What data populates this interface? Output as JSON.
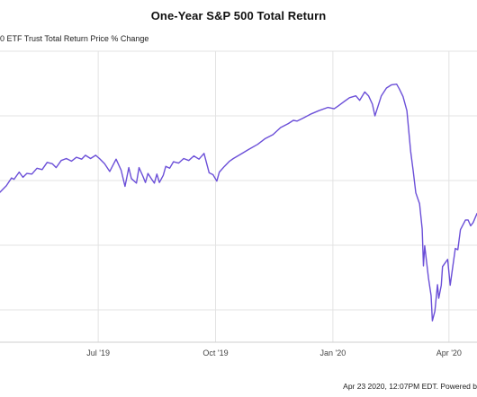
{
  "chart_data": {
    "type": "line",
    "title": "One-Year S&P 500 Total Return",
    "series_label_visible": "0 ETF Trust Total Return Price % Change",
    "footer": "Apr 23 2020, 12:07PM EDT.  Powered b",
    "x_tick_labels": [
      "Jul '19",
      "Oct '19",
      "Jan '20",
      "Apr '20"
    ],
    "x_ticks": [
      "2019-07-01",
      "2019-10-01",
      "2020-01-01",
      "2020-04-01"
    ],
    "xlim": [
      "2019-04-15",
      "2020-04-23"
    ],
    "ylim": [
      -25,
      20
    ],
    "ytick_values": [
      -20,
      -10,
      0,
      10,
      20
    ],
    "grid": true,
    "line_color": "#6b4fd8",
    "series": [
      {
        "x": [
          "2019-04-15",
          "2019-04-20",
          "2019-04-24",
          "2019-04-26",
          "2019-04-30",
          "2019-05-03",
          "2019-05-06",
          "2019-05-10",
          "2019-05-14",
          "2019-05-18",
          "2019-05-22",
          "2019-05-26",
          "2019-05-29",
          "2019-06-02",
          "2019-06-06",
          "2019-06-10",
          "2019-06-14",
          "2019-06-18",
          "2019-06-21",
          "2019-06-25",
          "2019-06-29",
          "2019-07-02",
          "2019-07-06",
          "2019-07-10",
          "2019-07-15",
          "2019-07-19",
          "2019-07-22",
          "2019-07-25",
          "2019-07-27",
          "2019-07-31",
          "2019-08-02",
          "2019-08-05",
          "2019-08-07",
          "2019-08-09",
          "2019-08-12",
          "2019-08-14",
          "2019-08-16",
          "2019-08-18",
          "2019-08-21",
          "2019-08-23",
          "2019-08-26",
          "2019-08-29",
          "2019-09-02",
          "2019-09-06",
          "2019-09-10",
          "2019-09-14",
          "2019-09-18",
          "2019-09-22",
          "2019-09-26",
          "2019-09-29",
          "2019-10-02",
          "2019-10-04",
          "2019-10-08",
          "2019-10-12",
          "2019-10-15",
          "2019-10-21",
          "2019-10-27",
          "2019-11-03",
          "2019-11-09",
          "2019-11-15",
          "2019-11-21",
          "2019-11-27",
          "2019-12-01",
          "2019-12-04",
          "2019-12-09",
          "2019-12-15",
          "2019-12-21",
          "2019-12-28",
          "2020-01-02",
          "2020-01-05",
          "2020-01-09",
          "2020-01-14",
          "2020-01-19",
          "2020-01-22",
          "2020-01-26",
          "2020-01-29",
          "2020-02-01",
          "2020-02-03",
          "2020-02-08",
          "2020-02-12",
          "2020-02-16",
          "2020-02-20",
          "2020-02-22",
          "2020-02-25",
          "2020-02-28",
          "2020-03-02",
          "2020-03-04",
          "2020-03-06",
          "2020-03-09",
          "2020-03-11",
          "2020-03-12",
          "2020-03-13",
          "2020-03-16",
          "2020-03-18",
          "2020-03-19",
          "2020-03-21",
          "2020-03-23",
          "2020-03-24",
          "2020-03-26",
          "2020-03-27",
          "2020-03-31",
          "2020-04-02",
          "2020-04-06",
          "2020-04-08",
          "2020-04-10",
          "2020-04-14",
          "2020-04-16",
          "2020-04-18",
          "2020-04-20",
          "2020-04-23"
        ],
        "y": [
          -1.8,
          -0.8,
          0.4,
          0.2,
          1.3,
          0.5,
          1.1,
          1.0,
          1.9,
          1.7,
          2.8,
          2.6,
          2.0,
          3.1,
          3.4,
          3.0,
          3.6,
          3.3,
          3.9,
          3.4,
          3.9,
          3.4,
          2.6,
          1.4,
          3.3,
          1.6,
          -0.9,
          2.0,
          0.3,
          -0.4,
          2.0,
          0.7,
          -0.3,
          1.1,
          0.2,
          -0.4,
          1.0,
          -0.3,
          0.8,
          2.2,
          1.9,
          2.9,
          2.7,
          3.4,
          3.1,
          3.8,
          3.3,
          4.2,
          1.2,
          0.9,
          -0.1,
          1.3,
          2.2,
          3.0,
          3.4,
          4.1,
          4.8,
          5.6,
          6.5,
          7.1,
          8.2,
          8.8,
          9.3,
          9.2,
          9.7,
          10.3,
          10.8,
          11.3,
          11.1,
          11.5,
          12.1,
          12.8,
          13.1,
          12.4,
          13.7,
          13.1,
          11.8,
          10.0,
          13.1,
          14.3,
          14.8,
          14.9,
          14.2,
          13.0,
          10.8,
          4.5,
          1.5,
          -1.9,
          -3.6,
          -7.5,
          -13.2,
          -10.1,
          -15.1,
          -17.8,
          -21.7,
          -20.2,
          -16.1,
          -18.2,
          -16.2,
          -13.3,
          -12.2,
          -16.2,
          -10.5,
          -10.7,
          -7.6,
          -6.1,
          -6.1,
          -7.0,
          -6.5,
          -5.1
        ]
      }
    ]
  }
}
